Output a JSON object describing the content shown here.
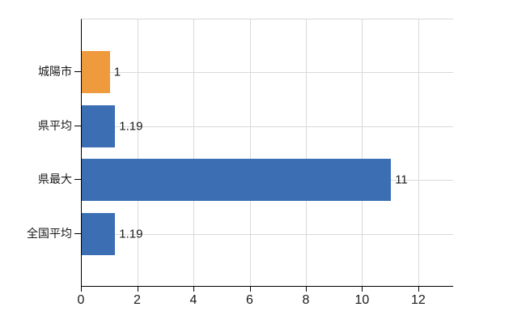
{
  "chart_data": {
    "type": "bar",
    "orientation": "horizontal",
    "title": "",
    "xlabel": "",
    "ylabel": "",
    "categories": [
      "城陽市",
      "県平均",
      "県最大",
      "全国平均"
    ],
    "values": [
      1,
      1.19,
      11,
      1.19
    ],
    "value_labels": [
      "1",
      "1.19",
      "11",
      "1.19"
    ],
    "x_ticks": [
      0,
      2,
      4,
      6,
      8,
      10,
      12
    ],
    "xlim": [
      0,
      13.24
    ],
    "grid": true,
    "legend": null,
    "highlight_category": "城陽市",
    "bar_colors": [
      "#f09a3e",
      "#3c6eb4",
      "#3c6eb4",
      "#3c6eb4"
    ],
    "colors": {
      "highlight_bar": "#f09a3e",
      "default_bar": "#3c6eb4",
      "grid": "#d9d9d9",
      "axis": "#000000",
      "text": "#1a1a1a",
      "background": "#ffffff"
    }
  }
}
